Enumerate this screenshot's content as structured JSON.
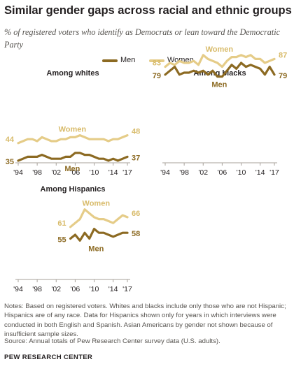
{
  "header": {
    "title": "Similar gender gaps across racial and ethnic groups",
    "subtitle": "% of registered voters who identify as Democrats or lean toward the Democratic Party"
  },
  "colors": {
    "men": "#8c6a22",
    "women": "#e5cc88",
    "axis": "#a7a19a",
    "label_women": "#d8bb6a",
    "label_men": "#8c6a22"
  },
  "legend": {
    "men": "Men",
    "women": "Women"
  },
  "chart_data": [
    {
      "type": "line",
      "title": "Among whites",
      "x": [
        1994,
        1995,
        1996,
        1997,
        1998,
        1999,
        2000,
        2001,
        2002,
        2003,
        2004,
        2005,
        2006,
        2007,
        2008,
        2009,
        2010,
        2011,
        2012,
        2013,
        2014,
        2015,
        2016,
        2017
      ],
      "x_ticks": [
        "'94",
        "'98",
        "'02",
        "'06",
        "'10",
        "'14",
        "'17"
      ],
      "series": [
        {
          "name": "Women",
          "values": [
            44,
            45,
            46,
            46,
            45,
            47,
            46,
            45,
            45,
            46,
            46,
            47,
            47,
            48,
            47,
            46,
            46,
            46,
            46,
            45,
            46,
            46,
            47,
            48
          ],
          "start_label": "44",
          "end_label": "48"
        },
        {
          "name": "Men",
          "values": [
            35,
            36,
            37,
            37,
            37,
            38,
            37,
            36,
            36,
            36,
            37,
            37,
            39,
            39,
            38,
            38,
            37,
            36,
            36,
            35,
            36,
            35,
            36,
            37
          ],
          "start_label": "35",
          "end_label": "37"
        }
      ],
      "ylim": [
        0,
        100
      ]
    },
    {
      "type": "line",
      "title": "Among blacks",
      "x": [
        1994,
        1995,
        1996,
        1997,
        1998,
        1999,
        2000,
        2001,
        2002,
        2003,
        2004,
        2005,
        2006,
        2007,
        2008,
        2009,
        2010,
        2011,
        2012,
        2013,
        2014,
        2015,
        2016,
        2017
      ],
      "x_ticks": [
        "'94",
        "'98",
        "'02",
        "'06",
        "'10",
        "'14",
        "'17"
      ],
      "series": [
        {
          "name": "Women",
          "values": [
            83,
            85,
            84,
            86,
            85,
            85,
            86,
            84,
            89,
            87,
            86,
            85,
            83,
            86,
            88,
            88,
            89,
            88,
            89,
            87,
            87,
            85,
            86,
            87
          ],
          "start_label": "83",
          "end_label": "87"
        },
        {
          "name": "Men",
          "values": [
            79,
            81,
            83,
            79,
            80,
            80,
            81,
            80,
            81,
            79,
            81,
            78,
            78,
            81,
            84,
            82,
            85,
            83,
            84,
            83,
            82,
            79,
            83,
            79
          ],
          "start_label": "79",
          "end_label": "79"
        }
      ],
      "ylim": [
        0,
        100
      ]
    },
    {
      "type": "line",
      "title": "Among Hispanics",
      "x": [
        2005,
        2006,
        2007,
        2008,
        2009,
        2010,
        2011,
        2012,
        2013,
        2014,
        2015,
        2016,
        2017
      ],
      "x_ticks": [
        "'94",
        "'98",
        "'02",
        "'06",
        "'10",
        "'14",
        "'17"
      ],
      "x_domain": [
        1994,
        2017
      ],
      "series": [
        {
          "name": "Women",
          "values": [
            61,
            63,
            65,
            70,
            68,
            66,
            65,
            65,
            64,
            63,
            65,
            67,
            66
          ],
          "start_label": "61",
          "end_label": "66"
        },
        {
          "name": "Men",
          "values": [
            55,
            57,
            54,
            58,
            55,
            60,
            58,
            58,
            57,
            56,
            57,
            58,
            58
          ],
          "start_label": "55",
          "end_label": "58"
        }
      ],
      "ylim": [
        0,
        100
      ]
    }
  ],
  "notes": "Notes: Based on registered voters. Whites and blacks include only those who are not Hispanic; Hispanics are of any race. Data for Hispanics shown only for years in which interviews were conducted in both English and Spanish. Asian Americans by gender not shown because of insufficient sample sizes.",
  "source": "Source: Annual totals of Pew Research Center survey data (U.S. adults).",
  "footer": "PEW RESEARCH CENTER"
}
